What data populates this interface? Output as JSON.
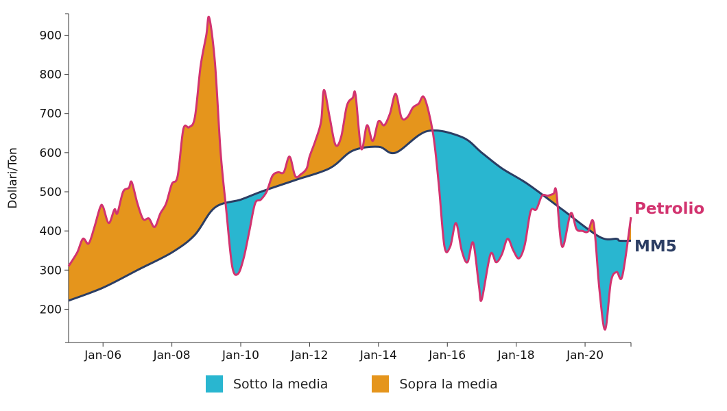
{
  "chart_data": {
    "type": "area",
    "ylabel": "Dollari/Ton",
    "xlabel": "",
    "ylim": [
      115,
      955
    ],
    "yticks": [
      200,
      300,
      400,
      500,
      600,
      700,
      800,
      900
    ],
    "xlim": [
      "2005-01",
      "2021-05"
    ],
    "xticks": [
      {
        "date": "2006-01",
        "label": "Jan-06"
      },
      {
        "date": "2008-01",
        "label": "Jan-08"
      },
      {
        "date": "2010-01",
        "label": "Jan-10"
      },
      {
        "date": "2012-01",
        "label": "Jan-12"
      },
      {
        "date": "2014-01",
        "label": "Jan-14"
      },
      {
        "date": "2016-01",
        "label": "Jan-16"
      },
      {
        "date": "2018-01",
        "label": "Jan-18"
      },
      {
        "date": "2020-01",
        "label": "Jan-20"
      }
    ],
    "grid": false,
    "legend": [
      {
        "name": "Sotto la media",
        "color": "#29b6d0"
      },
      {
        "name": "Sopra la media",
        "color": "#e5951c"
      }
    ],
    "series": [
      {
        "name": "Petrolio",
        "color": "#d2336f",
        "points": [
          [
            "2005-01",
            310
          ],
          [
            "2005-04",
            345
          ],
          [
            "2005-06",
            380
          ],
          [
            "2005-08",
            368
          ],
          [
            "2005-10",
            410
          ],
          [
            "2005-12",
            460
          ],
          [
            "2006-01",
            462
          ],
          [
            "2006-03",
            420
          ],
          [
            "2006-05",
            455
          ],
          [
            "2006-06",
            445
          ],
          [
            "2006-08",
            500
          ],
          [
            "2006-10",
            510
          ],
          [
            "2006-11",
            525
          ],
          [
            "2007-01",
            470
          ],
          [
            "2007-03",
            430
          ],
          [
            "2007-05",
            432
          ],
          [
            "2007-07",
            410
          ],
          [
            "2007-09",
            445
          ],
          [
            "2007-11",
            470
          ],
          [
            "2008-01",
            520
          ],
          [
            "2008-03",
            540
          ],
          [
            "2008-05",
            660
          ],
          [
            "2008-07",
            665
          ],
          [
            "2008-09",
            690
          ],
          [
            "2008-11",
            820
          ],
          [
            "2009-01",
            900
          ],
          [
            "2009-02",
            945
          ],
          [
            "2009-04",
            830
          ],
          [
            "2009-06",
            600
          ],
          [
            "2009-08",
            450
          ],
          [
            "2009-10",
            310
          ],
          [
            "2009-12",
            290
          ],
          [
            "2010-02",
            330
          ],
          [
            "2010-04",
            400
          ],
          [
            "2010-06",
            470
          ],
          [
            "2010-08",
            480
          ],
          [
            "2010-10",
            500
          ],
          [
            "2010-12",
            540
          ],
          [
            "2011-02",
            550
          ],
          [
            "2011-04",
            550
          ],
          [
            "2011-06",
            590
          ],
          [
            "2011-08",
            540
          ],
          [
            "2011-10",
            545
          ],
          [
            "2011-12",
            560
          ],
          [
            "2012-01",
            590
          ],
          [
            "2012-03",
            630
          ],
          [
            "2012-05",
            680
          ],
          [
            "2012-06",
            760
          ],
          [
            "2012-08",
            690
          ],
          [
            "2012-10",
            620
          ],
          [
            "2012-12",
            640
          ],
          [
            "2013-02",
            720
          ],
          [
            "2013-04",
            740
          ],
          [
            "2013-05",
            748
          ],
          [
            "2013-07",
            610
          ],
          [
            "2013-09",
            670
          ],
          [
            "2013-11",
            630
          ],
          [
            "2014-01",
            680
          ],
          [
            "2014-03",
            670
          ],
          [
            "2014-05",
            700
          ],
          [
            "2014-07",
            750
          ],
          [
            "2014-09",
            690
          ],
          [
            "2014-11",
            690
          ],
          [
            "2015-01",
            715
          ],
          [
            "2015-03",
            725
          ],
          [
            "2015-05",
            740
          ],
          [
            "2015-08",
            650
          ],
          [
            "2015-10",
            520
          ],
          [
            "2015-12",
            360
          ],
          [
            "2016-02",
            360
          ],
          [
            "2016-04",
            420
          ],
          [
            "2016-06",
            350
          ],
          [
            "2016-08",
            320
          ],
          [
            "2016-10",
            370
          ],
          [
            "2016-12",
            260
          ],
          [
            "2017-01",
            225
          ],
          [
            "2017-04",
            340
          ],
          [
            "2017-06",
            320
          ],
          [
            "2017-08",
            340
          ],
          [
            "2017-10",
            380
          ],
          [
            "2017-12",
            350
          ],
          [
            "2018-02",
            330
          ],
          [
            "2018-04",
            365
          ],
          [
            "2018-06",
            450
          ],
          [
            "2018-08",
            455
          ],
          [
            "2018-10",
            490
          ],
          [
            "2018-12",
            490
          ],
          [
            "2019-02",
            495
          ],
          [
            "2019-03",
            500
          ],
          [
            "2019-05",
            360
          ],
          [
            "2019-08",
            445
          ],
          [
            "2019-10",
            405
          ],
          [
            "2019-12",
            400
          ],
          [
            "2020-02",
            398
          ],
          [
            "2020-04",
            420
          ],
          [
            "2020-06",
            250
          ],
          [
            "2020-08",
            148
          ],
          [
            "2020-10",
            270
          ],
          [
            "2020-12",
            295
          ],
          [
            "2021-02",
            285
          ],
          [
            "2021-05",
            435
          ]
        ]
      },
      {
        "name": "MM5",
        "color": "#2b3d63",
        "points": [
          [
            "2005-01",
            222
          ],
          [
            "2006-01",
            255
          ],
          [
            "2007-01",
            300
          ],
          [
            "2008-01",
            345
          ],
          [
            "2008-09",
            390
          ],
          [
            "2009-04",
            460
          ],
          [
            "2010-01",
            480
          ],
          [
            "2010-08",
            500
          ],
          [
            "2011-08",
            530
          ],
          [
            "2012-08",
            560
          ],
          [
            "2013-04",
            605
          ],
          [
            "2014-01",
            615
          ],
          [
            "2014-07",
            600
          ],
          [
            "2015-06",
            655
          ],
          [
            "2016-06",
            640
          ],
          [
            "2017-01",
            600
          ],
          [
            "2017-08",
            560
          ],
          [
            "2018-05",
            520
          ],
          [
            "2019-05",
            455
          ],
          [
            "2020-06",
            385
          ],
          [
            "2020-12",
            380
          ],
          [
            "2021-01",
            375
          ],
          [
            "2021-05",
            375
          ]
        ]
      }
    ]
  }
}
